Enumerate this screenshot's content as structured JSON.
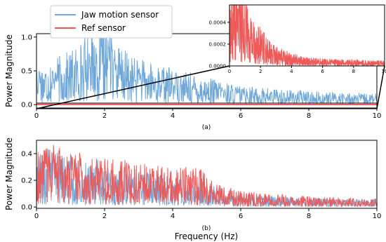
{
  "chart_data": [
    {
      "id": "a",
      "type": "line",
      "subplot_label": "(a)",
      "xlabel": "",
      "ylabel": "Power Magnitude",
      "xlim": [
        0,
        10
      ],
      "ylim": [
        -0.05,
        1.05
      ],
      "xticks": [
        "0",
        "2",
        "4",
        "6",
        "8",
        "10"
      ],
      "yticks": [
        "0.0",
        "0.5",
        "1.0"
      ],
      "xtick_values": [
        0,
        2,
        4,
        6,
        8,
        10
      ],
      "ytick_values": [
        0,
        0.5,
        1.0
      ],
      "legend": {
        "placement": "top-left",
        "entries": [
          "Jaw motion sensor",
          "Ref sensor"
        ]
      },
      "series": [
        {
          "name": "Jaw motion sensor",
          "color": "#6fa8d8",
          "envelope": {
            "x": [
              0,
              0.3,
              0.6,
              1.0,
              1.4,
              1.7,
              2.0,
              2.2,
              2.5,
              3.0,
              3.5,
              4.0,
              4.5,
              5.0,
              5.5,
              6.0,
              7.0,
              8.0,
              9.0,
              10.0
            ],
            "y": [
              0.3,
              0.32,
              0.35,
              0.4,
              0.5,
              0.58,
              0.62,
              0.55,
              0.42,
              0.34,
              0.3,
              0.27,
              0.24,
              0.2,
              0.17,
              0.14,
              0.12,
              0.1,
              0.09,
              0.08
            ]
          },
          "peaks": [
            [
              0.08,
              0.55
            ],
            [
              0.55,
              0.5
            ],
            [
              1.55,
              0.78
            ],
            [
              1.9,
              0.92
            ],
            [
              2.12,
              0.97
            ],
            [
              2.3,
              0.8
            ],
            [
              3.0,
              0.55
            ],
            [
              3.7,
              0.52
            ],
            [
              4.1,
              0.45
            ],
            [
              5.45,
              0.27
            ],
            [
              6.1,
              0.25
            ]
          ]
        },
        {
          "name": "Ref sensor",
          "color": "#ee5a5a",
          "envelope": {
            "x": [
              0,
              10
            ],
            "y": [
              0.003,
              0.002
            ]
          },
          "peaks": []
        }
      ]
    },
    {
      "id": "a_inset",
      "type": "line",
      "xlabel": "",
      "ylabel": "",
      "xlim": [
        0,
        10
      ],
      "ylim": [
        0,
        0.00056
      ],
      "xticks": [
        "0",
        "2",
        "4",
        "6",
        "8",
        "10"
      ],
      "yticks": [
        "0.0000",
        "0.0002",
        "0.0004"
      ],
      "xtick_values": [
        0,
        2,
        4,
        6,
        8,
        10
      ],
      "ytick_values": [
        0,
        0.0002,
        0.0004
      ],
      "zoom_of": "Ref sensor",
      "series": [
        {
          "name": "Ref sensor",
          "color": "#ee5a5a",
          "envelope": {
            "x": [
              0,
              0.4,
              0.8,
              1.2,
              1.6,
              2.0,
              2.5,
              3.0,
              4.0,
              5.0,
              6.0,
              7.0,
              8.0,
              9.0,
              10.0
            ],
            "y": [
              0.0003,
              0.00036,
              0.00034,
              0.0003,
              0.00022,
              0.00018,
              0.00012,
              9e-05,
              6e-05,
              4e-05,
              3.5e-05,
              3e-05,
              3e-05,
              2.5e-05,
              2.5e-05
            ]
          },
          "peaks": [
            [
              0.3,
              0.00052
            ],
            [
              0.52,
              0.00053
            ],
            [
              0.85,
              0.00042
            ],
            [
              1.2,
              0.0004
            ],
            [
              2.1,
              0.00024
            ],
            [
              2.85,
              0.00017
            ],
            [
              3.5,
              0.00012
            ]
          ]
        }
      ]
    },
    {
      "id": "b",
      "type": "line",
      "subplot_label": "(b)",
      "xlabel": "Frequency (Hz)",
      "ylabel": "Power Magnitude",
      "xlim": [
        0,
        10
      ],
      "ylim": [
        -0.01,
        0.5
      ],
      "xticks": [
        "0",
        "2",
        "4",
        "6",
        "8",
        "10"
      ],
      "yticks": [
        "0.0",
        "0.2",
        "0.4"
      ],
      "xtick_values": [
        0,
        2,
        4,
        6,
        8,
        10
      ],
      "ytick_values": [
        0,
        0.2,
        0.4
      ],
      "series": [
        {
          "name": "Jaw motion sensor",
          "color": "#6fa8d8",
          "envelope": {
            "x": [
              0,
              0.5,
              1.0,
              2.0,
              3.0,
              4.0,
              4.8,
              5.5,
              6.0,
              7.0,
              8.0,
              9.0,
              10.0
            ],
            "y": [
              0.2,
              0.22,
              0.18,
              0.15,
              0.14,
              0.12,
              0.1,
              0.07,
              0.05,
              0.04,
              0.035,
              0.03,
              0.03
            ]
          },
          "peaks": [
            [
              0.08,
              0.4
            ],
            [
              0.35,
              0.46
            ],
            [
              0.5,
              0.47
            ],
            [
              1.0,
              0.38
            ],
            [
              1.8,
              0.34
            ]
          ]
        },
        {
          "name": "Ref sensor",
          "color": "#ee5a5a",
          "envelope": {
            "x": [
              0,
              0.5,
              1.0,
              2.0,
              3.0,
              4.0,
              4.8,
              5.2,
              6.0,
              7.0,
              8.0,
              9.0,
              10.0
            ],
            "y": [
              0.2,
              0.24,
              0.21,
              0.18,
              0.17,
              0.15,
              0.15,
              0.09,
              0.06,
              0.05,
              0.04,
              0.035,
              0.03
            ]
          },
          "peaks": [
            [
              0.25,
              0.45
            ],
            [
              0.5,
              0.44
            ],
            [
              1.05,
              0.42
            ],
            [
              1.3,
              0.4
            ],
            [
              1.9,
              0.34
            ],
            [
              2.6,
              0.34
            ],
            [
              3.4,
              0.31
            ],
            [
              4.6,
              0.27
            ]
          ]
        }
      ]
    }
  ]
}
